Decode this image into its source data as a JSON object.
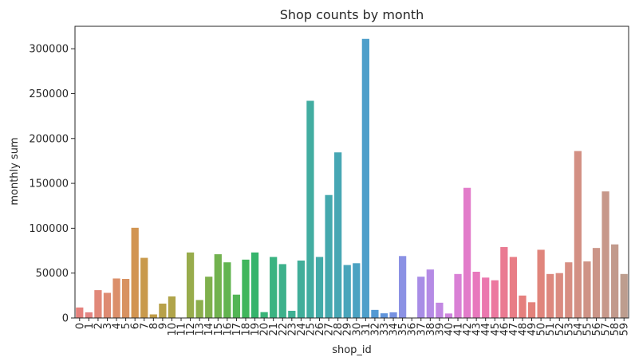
{
  "chart_data": {
    "type": "bar",
    "title": "Shop counts by month",
    "xlabel": "shop_id",
    "ylabel": "monthly sum",
    "ylim": [
      0,
      325000
    ],
    "yticks": [
      0,
      50000,
      100000,
      150000,
      200000,
      250000,
      300000
    ],
    "grid": false,
    "legend": "none",
    "categories": [
      "0",
      "1",
      "2",
      "3",
      "4",
      "5",
      "6",
      "7",
      "8",
      "9",
      "10",
      "11",
      "12",
      "13",
      "14",
      "15",
      "16",
      "17",
      "18",
      "19",
      "20",
      "21",
      "22",
      "23",
      "24",
      "25",
      "26",
      "27",
      "28",
      "29",
      "30",
      "31",
      "32",
      "33",
      "34",
      "35",
      "36",
      "37",
      "38",
      "39",
      "40",
      "41",
      "42",
      "43",
      "44",
      "45",
      "46",
      "47",
      "48",
      "49",
      "50",
      "51",
      "52",
      "53",
      "54",
      "55",
      "56",
      "57",
      "58",
      "59"
    ],
    "values": [
      11700,
      6300,
      31000,
      28000,
      44000,
      43500,
      100500,
      67000,
      4000,
      16000,
      24000,
      300,
      73000,
      20000,
      46000,
      71000,
      62000,
      26000,
      65000,
      73000,
      6500,
      68000,
      60000,
      8000,
      64000,
      242000,
      68000,
      137000,
      184500,
      59000,
      61000,
      311000,
      9000,
      5200,
      6300,
      69000,
      0,
      46000,
      54000,
      17000,
      5000,
      49000,
      145000,
      51500,
      45000,
      42000,
      79000,
      68000,
      25000,
      17500,
      76000,
      49000,
      50000,
      62000,
      186000,
      63000,
      78000,
      141000,
      82000,
      49000
    ],
    "colors": [
      "#e5817c",
      "#e38583",
      "#e18879",
      "#de8b72",
      "#db8f6a",
      "#d89261",
      "#d29552",
      "#c99a4c",
      "#c09d47",
      "#b8a14a",
      "#b0a44a",
      "#a5a84c",
      "#98ac4c",
      "#8cae4c",
      "#7fb04d",
      "#72b24f",
      "#62b450",
      "#52b555",
      "#40b65c",
      "#36b46c",
      "#39b478",
      "#3bb381",
      "#3db18b",
      "#3fb093",
      "#41ae9a",
      "#42ada1",
      "#43aba8",
      "#45a9ae",
      "#47a7b4",
      "#49a5bb",
      "#4ba2c2",
      "#4e9fca",
      "#5499d3",
      "#6195db",
      "#7792e1",
      "#8b91e4",
      "#9a8fe6",
      "#a88de6",
      "#b58be5",
      "#c288e2",
      "#ce84dd",
      "#d980d5",
      "#e27cca",
      "#e878bd",
      "#eb77ae",
      "#ec789f",
      "#ea7a92",
      "#e87d86",
      "#e57f7d",
      "#e3827b",
      "#e0857c",
      "#dd887e",
      "#da8b80",
      "#d78e82",
      "#d39084",
      "#cf9386",
      "#cb9588",
      "#c7988a",
      "#c29a8c",
      "#bd9d8e"
    ]
  }
}
